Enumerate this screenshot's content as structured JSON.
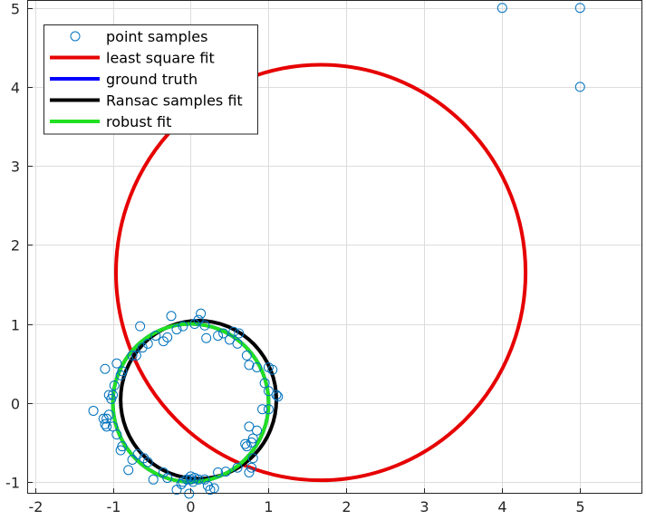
{
  "chart_data": {
    "type": "scatter",
    "title": "",
    "xlabel": "",
    "ylabel": "",
    "xlim": [
      -2.1,
      5.8
    ],
    "ylim": [
      -1.15,
      5.1
    ],
    "xticks": [
      -2,
      -1,
      0,
      1,
      2,
      3,
      4,
      5
    ],
    "yticks": [
      -1,
      0,
      1,
      2,
      3,
      4,
      5
    ],
    "xtick_labels": [
      "-2",
      "-1",
      "0",
      "1",
      "2",
      "3",
      "4",
      "5"
    ],
    "ytick_labels": [
      "-1",
      "0",
      "1",
      "2",
      "3",
      "4",
      "5"
    ],
    "grid": true,
    "legend_position": "top-left",
    "series": [
      {
        "name": "point samples",
        "kind": "scatter",
        "marker": "open-circle",
        "color": "#0072BD",
        "points": [
          [
            -1.25,
            -0.1
          ],
          [
            -1.12,
            -0.2
          ],
          [
            -1.1,
            -0.27
          ],
          [
            -1.08,
            -0.3
          ],
          [
            -1.05,
            -0.15
          ],
          [
            -1.02,
            0.05
          ],
          [
            -0.98,
            0.22
          ],
          [
            -1.1,
            0.43
          ],
          [
            -0.95,
            0.5
          ],
          [
            -0.88,
            0.4
          ],
          [
            -0.9,
            0.35
          ],
          [
            -0.7,
            0.6
          ],
          [
            -0.75,
            0.6
          ],
          [
            -0.62,
            0.7
          ],
          [
            -0.55,
            0.75
          ],
          [
            -0.65,
            0.97
          ],
          [
            -0.45,
            0.85
          ],
          [
            -0.35,
            0.78
          ],
          [
            -0.3,
            0.83
          ],
          [
            -0.25,
            1.1
          ],
          [
            -0.18,
            0.93
          ],
          [
            -0.1,
            0.97
          ],
          [
            0.05,
            1.0
          ],
          [
            0.1,
            1.05
          ],
          [
            0.13,
            1.13
          ],
          [
            0.18,
            0.98
          ],
          [
            0.2,
            0.82
          ],
          [
            0.35,
            0.85
          ],
          [
            0.42,
            0.88
          ],
          [
            0.5,
            0.8
          ],
          [
            0.55,
            0.9
          ],
          [
            0.6,
            0.75
          ],
          [
            0.62,
            0.88
          ],
          [
            0.72,
            0.6
          ],
          [
            0.75,
            0.48
          ],
          [
            0.85,
            0.45
          ],
          [
            1.0,
            0.45
          ],
          [
            1.05,
            0.42
          ],
          [
            0.95,
            0.25
          ],
          [
            1.0,
            0.15
          ],
          [
            1.1,
            0.1
          ],
          [
            1.12,
            0.08
          ],
          [
            1.0,
            -0.08
          ],
          [
            0.92,
            -0.08
          ],
          [
            0.85,
            -0.35
          ],
          [
            0.75,
            -0.3
          ],
          [
            0.8,
            -0.45
          ],
          [
            0.78,
            -0.5
          ],
          [
            0.7,
            -0.52
          ],
          [
            0.72,
            -0.55
          ],
          [
            0.8,
            -0.7
          ],
          [
            0.78,
            -0.82
          ],
          [
            0.75,
            -0.88
          ],
          [
            0.6,
            -0.82
          ],
          [
            0.45,
            -0.87
          ],
          [
            0.35,
            -0.88
          ],
          [
            0.3,
            -1.08
          ],
          [
            0.25,
            -1.1
          ],
          [
            0.18,
            -0.97
          ],
          [
            0.1,
            -0.97
          ],
          [
            0.05,
            -0.95
          ],
          [
            0.0,
            -0.93
          ],
          [
            -0.05,
            -0.97
          ],
          [
            -0.1,
            -1.0
          ],
          [
            -0.12,
            -1.03
          ],
          [
            -0.18,
            -1.1
          ],
          [
            -0.02,
            -1.15
          ],
          [
            -0.3,
            -0.95
          ],
          [
            -0.35,
            -0.88
          ],
          [
            -0.48,
            -0.97
          ],
          [
            -0.55,
            -0.75
          ],
          [
            -0.6,
            -0.7
          ],
          [
            -0.68,
            -0.65
          ],
          [
            -0.75,
            -0.72
          ],
          [
            -0.8,
            -0.85
          ],
          [
            -0.9,
            -0.6
          ],
          [
            -0.88,
            -0.55
          ],
          [
            -0.95,
            -0.4
          ],
          [
            -1.0,
            -0.3
          ],
          [
            -1.08,
            -0.2
          ],
          [
            -1.05,
            0.1
          ],
          [
            -1.0,
            0.1
          ],
          [
            0.0,
            -0.97
          ],
          [
            0.03,
            -1.0
          ],
          [
            0.22,
            -1.05
          ],
          [
            4.0,
            5.0
          ],
          [
            5.0,
            5.0
          ],
          [
            5.0,
            4.0
          ]
        ]
      },
      {
        "name": "least square fit",
        "kind": "circle",
        "color": "#e60000",
        "center": [
          1.67,
          1.65
        ],
        "radius": 2.63
      },
      {
        "name": "ground truth",
        "kind": "circle",
        "color": "#0000ff",
        "center": [
          0.0,
          0.0
        ],
        "radius": 1.0
      },
      {
        "name": "Ransac samples fit",
        "kind": "circle",
        "color": "#000000",
        "center": [
          0.1,
          0.04
        ],
        "radius": 1.0
      },
      {
        "name": "robust fit",
        "kind": "circle",
        "color": "#22e022",
        "center": [
          0.0,
          0.0
        ],
        "radius": 1.0
      }
    ]
  }
}
